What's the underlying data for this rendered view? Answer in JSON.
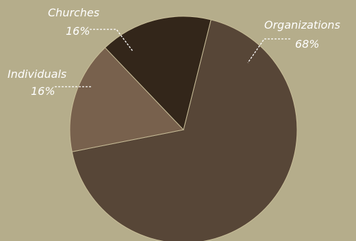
{
  "chart_data": {
    "type": "pie",
    "slices": [
      {
        "label": "Organizations",
        "value": 68,
        "value_text": "68%",
        "color": "#574637"
      },
      {
        "label": "Individuals",
        "value": 16,
        "value_text": "16%",
        "color": "#78614d"
      },
      {
        "label": "Churches",
        "value": 16,
        "value_text": "16%",
        "color": "#33261a"
      }
    ],
    "slice_separator_color": "#c8bd98",
    "background_color": "#b5ad8b",
    "label_color": "#ffffff"
  }
}
